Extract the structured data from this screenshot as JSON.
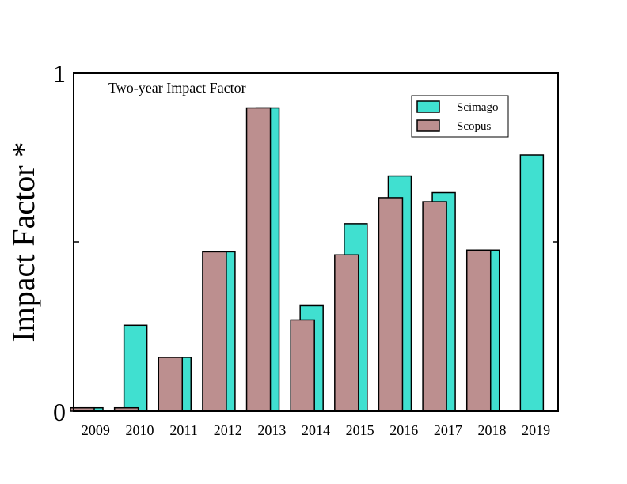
{
  "chart_data": {
    "type": "bar",
    "title": "",
    "annotation": "Two-year Impact Factor",
    "ylabel": "Impact Factor *",
    "xlabel": "",
    "ylim": [
      0,
      1
    ],
    "y_tick_labels": [
      "0",
      "1"
    ],
    "categories": [
      "2009",
      "2010",
      "2011",
      "2012",
      "2013",
      "2014",
      "2015",
      "2016",
      "2017",
      "2018",
      "2019"
    ],
    "series": [
      {
        "name": "Scimago",
        "color": "#40e0d0",
        "values": [
          0.01,
          0.254,
          0.159,
          0.471,
          0.896,
          0.312,
          0.554,
          0.695,
          0.646,
          0.476,
          0.757
        ]
      },
      {
        "name": "Scopus",
        "color": "#bc8f8f",
        "values": [
          0.01,
          0.01,
          0.159,
          0.471,
          0.896,
          0.27,
          0.462,
          0.631,
          0.619,
          0.476,
          null
        ]
      }
    ],
    "legend_position": "top-right",
    "grid": false
  }
}
